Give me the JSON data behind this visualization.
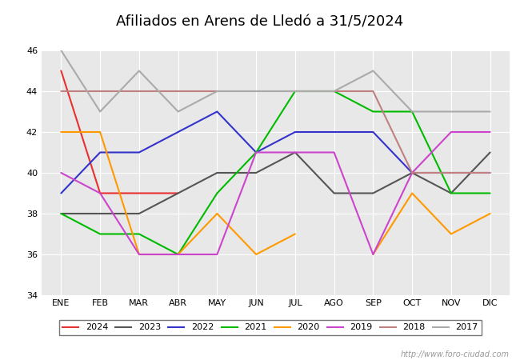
{
  "title": "Afiliados en Arens de Lledó a 31/5/2024",
  "header_color": "#4472c4",
  "plot_bg": "#e8e8e8",
  "fig_bg": "#ffffff",
  "ylim": [
    34,
    46
  ],
  "yticks": [
    34,
    36,
    38,
    40,
    42,
    44,
    46
  ],
  "months": [
    "ENE",
    "FEB",
    "MAR",
    "ABR",
    "MAY",
    "JUN",
    "JUL",
    "AGO",
    "SEP",
    "OCT",
    "NOV",
    "DIC"
  ],
  "series": [
    {
      "year": "2024",
      "color": "#e83030",
      "data": [
        45,
        39,
        39,
        39,
        null,
        null,
        null,
        null,
        null,
        null,
        null,
        null
      ]
    },
    {
      "year": "2023",
      "color": "#555555",
      "data": [
        38,
        38,
        38,
        39,
        40,
        40,
        41,
        39,
        39,
        40,
        39,
        41
      ]
    },
    {
      "year": "2022",
      "color": "#3333cc",
      "data": [
        39,
        41,
        41,
        42,
        43,
        41,
        42,
        42,
        42,
        40,
        40,
        40
      ]
    },
    {
      "year": "2021",
      "color": "#00bb00",
      "data": [
        38,
        37,
        37,
        36,
        39,
        41,
        44,
        44,
        43,
        43,
        39,
        39
      ]
    },
    {
      "year": "2020",
      "color": "#ff9900",
      "data": [
        42,
        42,
        36,
        36,
        38,
        36,
        37,
        null,
        36,
        39,
        37,
        38
      ]
    },
    {
      "year": "2019",
      "color": "#cc44cc",
      "data": [
        40,
        39,
        36,
        36,
        36,
        41,
        41,
        41,
        36,
        40,
        42,
        42
      ]
    },
    {
      "year": "2018",
      "color": "#c08080",
      "data": [
        44,
        44,
        44,
        44,
        44,
        44,
        44,
        44,
        44,
        40,
        40,
        40
      ]
    },
    {
      "year": "2017",
      "color": "#aaaaaa",
      "data": [
        46,
        43,
        45,
        43,
        44,
        44,
        44,
        44,
        45,
        43,
        43,
        43
      ]
    }
  ],
  "watermark": "http://www.foro-ciudad.com",
  "title_fontsize": 13,
  "tick_fontsize": 8
}
